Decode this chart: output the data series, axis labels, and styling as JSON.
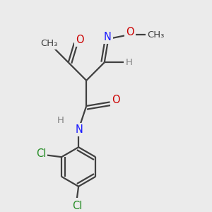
{
  "bg_color": "#ebebeb",
  "bond_color": "#404040",
  "bond_lw": 1.6,
  "atom_colors": {
    "C": "#404040",
    "O": "#cc0000",
    "N": "#1a1aff",
    "H": "#808080",
    "Cl": "#228B22"
  },
  "fs": 10.5,
  "fs_small": 9.5,
  "figsize": [
    3.0,
    3.0
  ],
  "dpi": 100,
  "xlim": [
    0.0,
    1.0
  ],
  "ylim": [
    0.0,
    1.0
  ]
}
